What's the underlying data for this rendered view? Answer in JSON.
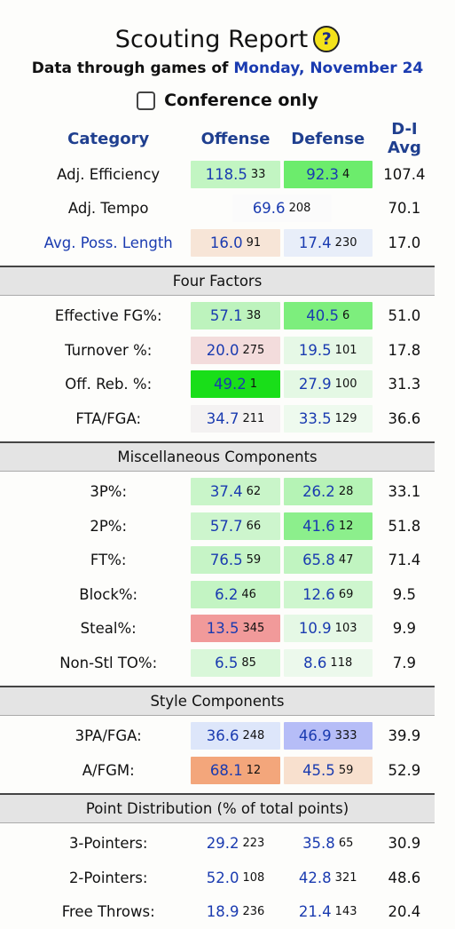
{
  "header": {
    "title": "Scouting Report",
    "help_icon": "?",
    "subtitle_prefix": "Data through games of",
    "subtitle_date": "Monday, November 24",
    "conference_label": "Conference only",
    "conference_checked": false
  },
  "columns": {
    "category": "Category",
    "offense": "Offense",
    "defense": "Defense",
    "avg": "D-I Avg"
  },
  "top_rows": [
    {
      "label": "Adj. Efficiency",
      "link": false,
      "off": "118.5",
      "off_rank": "33",
      "off_color": "#c2f5c2",
      "def": "92.3",
      "def_rank": "4",
      "def_color": "#6cec6c",
      "avg": "107.4",
      "merged": false
    },
    {
      "label": "Adj. Tempo",
      "link": false,
      "off": "69.6",
      "off_rank": "208",
      "off_color": "#fbfbfb",
      "def": "",
      "def_rank": "",
      "def_color": "",
      "avg": "70.1",
      "merged": true
    },
    {
      "label": "Avg. Poss. Length",
      "link": true,
      "off": "16.0",
      "off_rank": "91",
      "off_color": "#f7e5d7",
      "def": "17.4",
      "def_rank": "230",
      "def_color": "#e8eef9",
      "avg": "17.0",
      "merged": false
    }
  ],
  "sections": [
    {
      "title": "Four Factors",
      "rows": [
        {
          "label": "Effective FG%:",
          "off": "57.1",
          "off_rank": "38",
          "off_color": "#bdf3bd",
          "def": "40.5",
          "def_rank": "6",
          "def_color": "#7dee7d",
          "avg": "51.0"
        },
        {
          "label": "Turnover %:",
          "off": "20.0",
          "off_rank": "275",
          "off_color": "#f3dcdc",
          "def": "19.5",
          "def_rank": "101",
          "def_color": "#e6f8e6",
          "avg": "17.8"
        },
        {
          "label": "Off. Reb. %:",
          "off": "49.2",
          "off_rank": "1",
          "off_color": "#19de19",
          "def": "27.9",
          "def_rank": "100",
          "def_color": "#e4f8e4",
          "avg": "31.3"
        },
        {
          "label": "FTA/FGA:",
          "off": "34.7",
          "off_rank": "211",
          "off_color": "#f4f2f2",
          "def": "33.5",
          "def_rank": "129",
          "def_color": "#eefaee",
          "avg": "36.6"
        }
      ]
    },
    {
      "title": "Miscellaneous Components",
      "rows": [
        {
          "label": "3P%:",
          "off": "37.4",
          "off_rank": "62",
          "off_color": "#c9f5c9",
          "def": "26.2",
          "def_rank": "28",
          "def_color": "#b5f3b5",
          "avg": "33.1"
        },
        {
          "label": "2P%:",
          "off": "57.7",
          "off_rank": "66",
          "off_color": "#cdf5cd",
          "def": "41.6",
          "def_rank": "12",
          "def_color": "#8cef8c",
          "avg": "51.8"
        },
        {
          "label": "FT%:",
          "off": "76.5",
          "off_rank": "59",
          "off_color": "#c6f4c6",
          "def": "65.8",
          "def_rank": "47",
          "def_color": "#c0f4c0",
          "avg": "71.4"
        },
        {
          "label": "Block%:",
          "off": "6.2",
          "off_rank": "46",
          "off_color": "#c3f4c3",
          "def": "12.6",
          "def_rank": "69",
          "def_color": "#cef6ce",
          "avg": "9.5"
        },
        {
          "label": "Steal%:",
          "off": "13.5",
          "off_rank": "345",
          "off_color": "#f19a9a",
          "def": "10.9",
          "def_rank": "103",
          "def_color": "#e5f8e5",
          "avg": "9.9"
        },
        {
          "label": "Non-Stl TO%:",
          "off": "6.5",
          "off_rank": "85",
          "off_color": "#d9f7d9",
          "def": "8.6",
          "def_rank": "118",
          "def_color": "#ecf9ec",
          "avg": "7.9"
        }
      ]
    },
    {
      "title": "Style Components",
      "rows": [
        {
          "label": "3PA/FGA:",
          "off": "36.6",
          "off_rank": "248",
          "off_color": "#dde6fa",
          "def": "46.9",
          "def_rank": "333",
          "def_color": "#b6bdf7",
          "avg": "39.9"
        },
        {
          "label": "A/FGM:",
          "off": "68.1",
          "off_rank": "12",
          "off_color": "#f3a67b",
          "def": "45.5",
          "def_rank": "59",
          "def_color": "#f8e0ce",
          "avg": "52.9"
        }
      ]
    },
    {
      "title": "Point Distribution (% of total points)",
      "rows": [
        {
          "label": "3-Pointers:",
          "off": "29.2",
          "off_rank": "223",
          "off_color": "",
          "def": "35.8",
          "def_rank": "65",
          "def_color": "",
          "avg": "30.9"
        },
        {
          "label": "2-Pointers:",
          "off": "52.0",
          "off_rank": "108",
          "off_color": "",
          "def": "42.8",
          "def_rank": "321",
          "def_color": "",
          "avg": "48.6"
        },
        {
          "label": "Free Throws:",
          "off": "18.9",
          "off_rank": "236",
          "off_color": "",
          "def": "21.4",
          "def_rank": "143",
          "def_color": "",
          "avg": "20.4"
        }
      ]
    }
  ]
}
